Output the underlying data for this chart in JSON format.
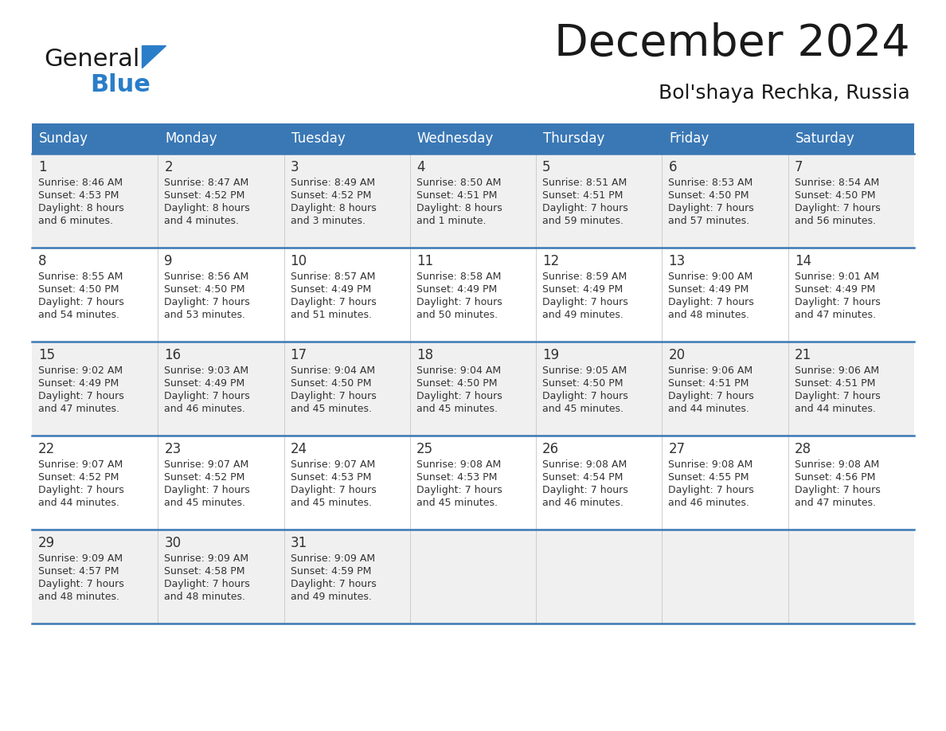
{
  "title": "December 2024",
  "subtitle": "Bol'shaya Rechka, Russia",
  "days_of_week": [
    "Sunday",
    "Monday",
    "Tuesday",
    "Wednesday",
    "Thursday",
    "Friday",
    "Saturday"
  ],
  "header_bg": "#3a78b5",
  "header_text": "#ffffff",
  "row_bg_odd": "#f0f0f0",
  "row_bg_even": "#ffffff",
  "cell_text": "#333333",
  "border_color": "#3a78b5",
  "separator_color": "#cccccc",
  "calendar_data": [
    [
      {
        "day": "1",
        "sunrise": "8:46 AM",
        "sunset": "4:53 PM",
        "daylight_line1": "Daylight: 8 hours",
        "daylight_line2": "and 6 minutes."
      },
      {
        "day": "2",
        "sunrise": "8:47 AM",
        "sunset": "4:52 PM",
        "daylight_line1": "Daylight: 8 hours",
        "daylight_line2": "and 4 minutes."
      },
      {
        "day": "3",
        "sunrise": "8:49 AM",
        "sunset": "4:52 PM",
        "daylight_line1": "Daylight: 8 hours",
        "daylight_line2": "and 3 minutes."
      },
      {
        "day": "4",
        "sunrise": "8:50 AM",
        "sunset": "4:51 PM",
        "daylight_line1": "Daylight: 8 hours",
        "daylight_line2": "and 1 minute."
      },
      {
        "day": "5",
        "sunrise": "8:51 AM",
        "sunset": "4:51 PM",
        "daylight_line1": "Daylight: 7 hours",
        "daylight_line2": "and 59 minutes."
      },
      {
        "day": "6",
        "sunrise": "8:53 AM",
        "sunset": "4:50 PM",
        "daylight_line1": "Daylight: 7 hours",
        "daylight_line2": "and 57 minutes."
      },
      {
        "day": "7",
        "sunrise": "8:54 AM",
        "sunset": "4:50 PM",
        "daylight_line1": "Daylight: 7 hours",
        "daylight_line2": "and 56 minutes."
      }
    ],
    [
      {
        "day": "8",
        "sunrise": "8:55 AM",
        "sunset": "4:50 PM",
        "daylight_line1": "Daylight: 7 hours",
        "daylight_line2": "and 54 minutes."
      },
      {
        "day": "9",
        "sunrise": "8:56 AM",
        "sunset": "4:50 PM",
        "daylight_line1": "Daylight: 7 hours",
        "daylight_line2": "and 53 minutes."
      },
      {
        "day": "10",
        "sunrise": "8:57 AM",
        "sunset": "4:49 PM",
        "daylight_line1": "Daylight: 7 hours",
        "daylight_line2": "and 51 minutes."
      },
      {
        "day": "11",
        "sunrise": "8:58 AM",
        "sunset": "4:49 PM",
        "daylight_line1": "Daylight: 7 hours",
        "daylight_line2": "and 50 minutes."
      },
      {
        "day": "12",
        "sunrise": "8:59 AM",
        "sunset": "4:49 PM",
        "daylight_line1": "Daylight: 7 hours",
        "daylight_line2": "and 49 minutes."
      },
      {
        "day": "13",
        "sunrise": "9:00 AM",
        "sunset": "4:49 PM",
        "daylight_line1": "Daylight: 7 hours",
        "daylight_line2": "and 48 minutes."
      },
      {
        "day": "14",
        "sunrise": "9:01 AM",
        "sunset": "4:49 PM",
        "daylight_line1": "Daylight: 7 hours",
        "daylight_line2": "and 47 minutes."
      }
    ],
    [
      {
        "day": "15",
        "sunrise": "9:02 AM",
        "sunset": "4:49 PM",
        "daylight_line1": "Daylight: 7 hours",
        "daylight_line2": "and 47 minutes."
      },
      {
        "day": "16",
        "sunrise": "9:03 AM",
        "sunset": "4:49 PM",
        "daylight_line1": "Daylight: 7 hours",
        "daylight_line2": "and 46 minutes."
      },
      {
        "day": "17",
        "sunrise": "9:04 AM",
        "sunset": "4:50 PM",
        "daylight_line1": "Daylight: 7 hours",
        "daylight_line2": "and 45 minutes."
      },
      {
        "day": "18",
        "sunrise": "9:04 AM",
        "sunset": "4:50 PM",
        "daylight_line1": "Daylight: 7 hours",
        "daylight_line2": "and 45 minutes."
      },
      {
        "day": "19",
        "sunrise": "9:05 AM",
        "sunset": "4:50 PM",
        "daylight_line1": "Daylight: 7 hours",
        "daylight_line2": "and 45 minutes."
      },
      {
        "day": "20",
        "sunrise": "9:06 AM",
        "sunset": "4:51 PM",
        "daylight_line1": "Daylight: 7 hours",
        "daylight_line2": "and 44 minutes."
      },
      {
        "day": "21",
        "sunrise": "9:06 AM",
        "sunset": "4:51 PM",
        "daylight_line1": "Daylight: 7 hours",
        "daylight_line2": "and 44 minutes."
      }
    ],
    [
      {
        "day": "22",
        "sunrise": "9:07 AM",
        "sunset": "4:52 PM",
        "daylight_line1": "Daylight: 7 hours",
        "daylight_line2": "and 44 minutes."
      },
      {
        "day": "23",
        "sunrise": "9:07 AM",
        "sunset": "4:52 PM",
        "daylight_line1": "Daylight: 7 hours",
        "daylight_line2": "and 45 minutes."
      },
      {
        "day": "24",
        "sunrise": "9:07 AM",
        "sunset": "4:53 PM",
        "daylight_line1": "Daylight: 7 hours",
        "daylight_line2": "and 45 minutes."
      },
      {
        "day": "25",
        "sunrise": "9:08 AM",
        "sunset": "4:53 PM",
        "daylight_line1": "Daylight: 7 hours",
        "daylight_line2": "and 45 minutes."
      },
      {
        "day": "26",
        "sunrise": "9:08 AM",
        "sunset": "4:54 PM",
        "daylight_line1": "Daylight: 7 hours",
        "daylight_line2": "and 46 minutes."
      },
      {
        "day": "27",
        "sunrise": "9:08 AM",
        "sunset": "4:55 PM",
        "daylight_line1": "Daylight: 7 hours",
        "daylight_line2": "and 46 minutes."
      },
      {
        "day": "28",
        "sunrise": "9:08 AM",
        "sunset": "4:56 PM",
        "daylight_line1": "Daylight: 7 hours",
        "daylight_line2": "and 47 minutes."
      }
    ],
    [
      {
        "day": "29",
        "sunrise": "9:09 AM",
        "sunset": "4:57 PM",
        "daylight_line1": "Daylight: 7 hours",
        "daylight_line2": "and 48 minutes."
      },
      {
        "day": "30",
        "sunrise": "9:09 AM",
        "sunset": "4:58 PM",
        "daylight_line1": "Daylight: 7 hours",
        "daylight_line2": "and 48 minutes."
      },
      {
        "day": "31",
        "sunrise": "9:09 AM",
        "sunset": "4:59 PM",
        "daylight_line1": "Daylight: 7 hours",
        "daylight_line2": "and 49 minutes."
      },
      null,
      null,
      null,
      null
    ]
  ],
  "logo_general_color": "#1a1a1a",
  "logo_blue_color": "#2a7dc9",
  "logo_triangle_color": "#2a7dc9",
  "title_fontsize": 40,
  "subtitle_fontsize": 18,
  "header_fontsize": 12,
  "day_num_fontsize": 12,
  "cell_fontsize": 9
}
